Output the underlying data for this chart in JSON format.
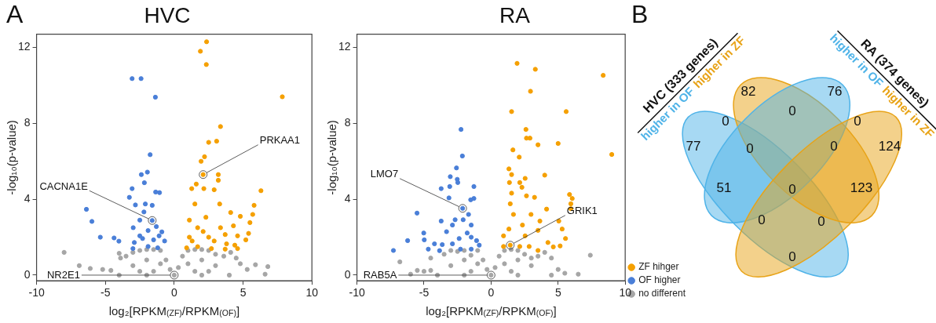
{
  "chart_data": [
    {
      "type": "scatter",
      "title": "HVC",
      "annotations": [
        "A",
        {
          "text": "PRKAA1",
          "x": 2.1,
          "y": 5.3
        },
        {
          "text": "CACNA1E",
          "x": -1.6,
          "y": 2.88
        },
        {
          "text": "NR2E1",
          "x": 0,
          "y": 0
        }
      ],
      "xlabel": "log₂[RPKM$_{(ZF)}$/RPKM$_{(OF)}$]",
      "ylabel": "-log₁₀(p-value)",
      "xlim": [
        -10,
        10
      ],
      "ylim": [
        -0.3,
        12.7
      ],
      "xticks": [
        -10,
        -5,
        0,
        5,
        10
      ],
      "yticks": [
        0,
        4,
        8,
        12
      ],
      "marker": "circle",
      "legend": false,
      "series": [
        {
          "color": "#f5a000",
          "x": [
            2.35,
            1.9,
            2.33,
            7.85,
            3.36,
            3.08,
            2.5,
            2.2,
            1.95,
            2.1,
            3.2,
            3.2,
            1.6,
            1.27,
            2.15,
            2.9,
            6.3,
            5.8,
            3.3,
            1.5,
            4.1,
            5.7,
            4.8,
            2.3,
            1.1,
            5.5,
            4.3,
            3.36,
            1.7,
            5.4,
            3.7,
            4.6,
            5.2,
            1.1,
            2.5,
            4.4,
            3.8,
            0.9,
            2.7,
            1.7,
            1.3,
            2.1,
            2.9,
            3.7,
            4.6
          ],
          "values": [
            12.3,
            11.8,
            11.1,
            9.4,
            7.83,
            7.06,
            7.0,
            6.24,
            6.0,
            5.3,
            5.3,
            5.0,
            4.8,
            4.56,
            4.56,
            4.5,
            4.45,
            3.68,
            3.75,
            3.75,
            3.3,
            3.2,
            3.1,
            3.05,
            2.9,
            2.77,
            2.6,
            2.5,
            2.5,
            2.2,
            2.14,
            2.07,
            1.86,
            2.0,
            2.0,
            1.58,
            1.65,
            1.44,
            1.4,
            1.5,
            1.8,
            2.3,
            1.8,
            1.37,
            1.4
          ]
        },
        {
          "color": "#4a7fd8",
          "x": [
            -3.06,
            -2.41,
            -1.37,
            -1.75,
            -1.95,
            -2.39,
            -2.17,
            -3.06,
            -3.26,
            -1.35,
            -1.07,
            -6.38,
            -5.98,
            -5.37,
            -4.37,
            -4.02,
            -2.82,
            -2.1,
            -1.6,
            -2.2,
            -2.98,
            -2.5,
            -1.6,
            -1.3,
            -1.9,
            -0.9,
            -2.3,
            -1.5,
            -0.7,
            -2.9,
            -1.9,
            -1.2,
            -3.0,
            -2.5,
            -1.1
          ],
          "values": [
            10.36,
            10.36,
            9.38,
            6.35,
            5.43,
            5.3,
            4.87,
            4.56,
            4.1,
            4.38,
            4.35,
            3.47,
            2.83,
            2.0,
            1.96,
            1.79,
            3.7,
            3.75,
            3.68,
            3.33,
            2.5,
            2.9,
            2.88,
            2.56,
            2.35,
            2.28,
            1.93,
            1.86,
            1.8,
            1.72,
            1.51,
            1.44,
            1.4,
            2.07,
            2.07
          ]
        },
        {
          "color": "#a6a6a6",
          "x": [
            -8.0,
            -6.9,
            -6.1,
            -5.2,
            -4.6,
            -4.0,
            -3.9,
            -3.5,
            -3.0,
            -2.5,
            -2.0,
            -1.5,
            -1.0,
            -0.6,
            -0.3,
            0,
            0.3,
            0.6,
            1.0,
            1.5,
            2.0,
            2.5,
            3.0,
            3.6,
            4.1,
            4.5,
            4.8,
            5.3,
            5.9,
            6.8,
            6.6,
            4.0,
            2.0,
            -2.0,
            -4.0,
            -1.0,
            1.0,
            -2.0,
            2.0,
            -3.0,
            3.0,
            -1.5,
            1.5,
            -2.5,
            2.5
          ],
          "values": [
            1.2,
            0.5,
            0.35,
            0.3,
            0.25,
            1.15,
            0.9,
            1.0,
            1.2,
            1.3,
            1.35,
            1.35,
            1.3,
            0.8,
            0.3,
            0,
            0.4,
            1.0,
            1.3,
            1.35,
            1.35,
            1.3,
            1.1,
            1.0,
            1.2,
            0.9,
            0.6,
            0.3,
            0.55,
            0.45,
            0.05,
            0,
            0,
            0,
            0,
            0.6,
            0.6,
            0.8,
            0.8,
            0.5,
            0.5,
            0.2,
            0.2,
            0.2,
            0.2
          ]
        }
      ]
    },
    {
      "type": "scatter",
      "title": "RA",
      "annotations": [
        {
          "text": "LMO7",
          "x": -2.12,
          "y": 3.52
        },
        {
          "text": "GRIK1",
          "x": 1.43,
          "y": 1.58
        },
        {
          "text": "RAB5A",
          "x": 0,
          "y": 0
        }
      ],
      "xlabel": "log₂[RPKM$_{(ZF)}$/RPKM$_{(OF)}$]",
      "ylabel": "-log₁₀(p-value)",
      "xlim": [
        -10,
        10
      ],
      "ylim": [
        -0.3,
        12.7
      ],
      "xticks": [
        -10,
        -5,
        0,
        5,
        10
      ],
      "yticks": [
        0,
        4,
        8,
        12
      ],
      "marker": "circle",
      "legend": "right",
      "series": [
        {
          "name": "ZF hihger",
          "color": "#f5a000",
          "x": [
            1.94,
            3.3,
            8.36,
            2.94,
            1.53,
            5.6,
            2.6,
            2.64,
            2.9,
            5.0,
            3.5,
            1.63,
            9.0,
            2.1,
            1.33,
            1.53,
            4.0,
            2.54,
            1.37,
            2.14,
            2.3,
            1.53,
            5.85,
            6.05,
            2.64,
            3.24,
            5.95,
            1.43,
            4.14,
            5.95,
            2.98,
            1.67,
            3.64,
            5.05,
            5.3,
            2.34,
            1.33,
            3.5,
            0.93,
            5.55,
            4.24,
            5.15,
            4.64,
            3.5,
            1.43,
            2.14,
            2.84,
            0.93,
            2.54
          ],
          "values": [
            11.16,
            10.85,
            10.53,
            9.69,
            8.62,
            8.62,
            7.68,
            7.22,
            7.22,
            6.94,
            6.87,
            6.6,
            6.36,
            6.22,
            5.6,
            5.3,
            5.27,
            5.1,
            4.88,
            4.88,
            4.63,
            4.32,
            4.25,
            4.04,
            4.18,
            4.1,
            3.76,
            3.76,
            3.48,
            3.5,
            3.2,
            3.2,
            2.85,
            2.85,
            2.43,
            2.64,
            2.43,
            2.36,
            2.07,
            1.93,
            1.72,
            1.54,
            1.49,
            1.3,
            1.58,
            1.51,
            1.51,
            1.51,
            2.07
          ]
        },
        {
          "name": "OF higher",
          "color": "#4a7fd8",
          "x": [
            -2.24,
            -2.14,
            -2.58,
            -3.04,
            -2.52,
            -2.48,
            -3.72,
            -3.08,
            -1.28,
            -1.28,
            -1.52,
            -3.14,
            -2.12,
            -5.52,
            -1.68,
            -3.72,
            -2.68,
            -2.08,
            -2.88,
            -1.48,
            -3.32,
            -5.02,
            -1.78,
            -6.22,
            -4.98,
            -2.38,
            -1.48,
            -1.08,
            -4.22,
            -3.64,
            -2.88,
            -4.68,
            -3.84,
            -7.28,
            -2.28,
            -1.48,
            -0.88
          ],
          "values": [
            7.68,
            6.28,
            5.65,
            5.19,
            5.05,
            4.88,
            4.56,
            4.67,
            4.67,
            4.04,
            3.97,
            4.07,
            3.52,
            3.27,
            3.2,
            2.85,
            2.92,
            2.92,
            2.64,
            2.64,
            2.29,
            2.22,
            2.22,
            1.82,
            1.86,
            1.93,
            2.0,
            1.82,
            1.65,
            1.61,
            1.65,
            1.37,
            1.29,
            1.3,
            1.37,
            1.37,
            1.58
          ]
        },
        {
          "name": "no different",
          "color": "#a6a6a6",
          "x": [
            -6.8,
            -6.0,
            -5.5,
            -5.0,
            -4.5,
            -4.5,
            -3.5,
            -3.0,
            -2.5,
            -2.0,
            -1.5,
            -1.0,
            -0.6,
            -0.3,
            0,
            0.3,
            0.6,
            1.0,
            1.5,
            2.0,
            2.5,
            3.0,
            3.5,
            4.0,
            4.5,
            5.0,
            5.5,
            6.5,
            7.4,
            4.5,
            2.0,
            -2.0,
            -4.0,
            -1.0,
            1.0,
            -2.0,
            2.0,
            -3.0,
            3.0,
            -1.5,
            1.5
          ],
          "values": [
            0.7,
            0.05,
            0.25,
            0.2,
            0.25,
            0.9,
            1.1,
            1.3,
            1.25,
            1.3,
            1.05,
            1.3,
            0.8,
            0.3,
            0,
            0.4,
            1.0,
            1.3,
            1.35,
            1.3,
            1.1,
            0.9,
            1.0,
            1.2,
            0.9,
            0.3,
            0.1,
            0.05,
            1.05,
            0,
            0,
            0,
            0,
            0.6,
            0.6,
            0.8,
            0.8,
            0.5,
            0.5,
            0.2,
            0.2
          ]
        }
      ]
    },
    {
      "type": "other",
      "annotations": [
        "B",
        "HVC (333 genes)",
        "higher in OF",
        "higher in ZF",
        "RA (374 genes)",
        "higher in OF",
        "higher in ZF"
      ],
      "data_labels": true,
      "categories": [
        null,
        null,
        null,
        null,
        null,
        null,
        null,
        null,
        null,
        null,
        null,
        null,
        null,
        null,
        null
      ],
      "values": [
        82,
        76,
        0,
        0,
        0,
        77,
        0,
        0,
        124,
        51,
        0,
        123,
        0,
        0,
        0
      ]
    }
  ]
}
